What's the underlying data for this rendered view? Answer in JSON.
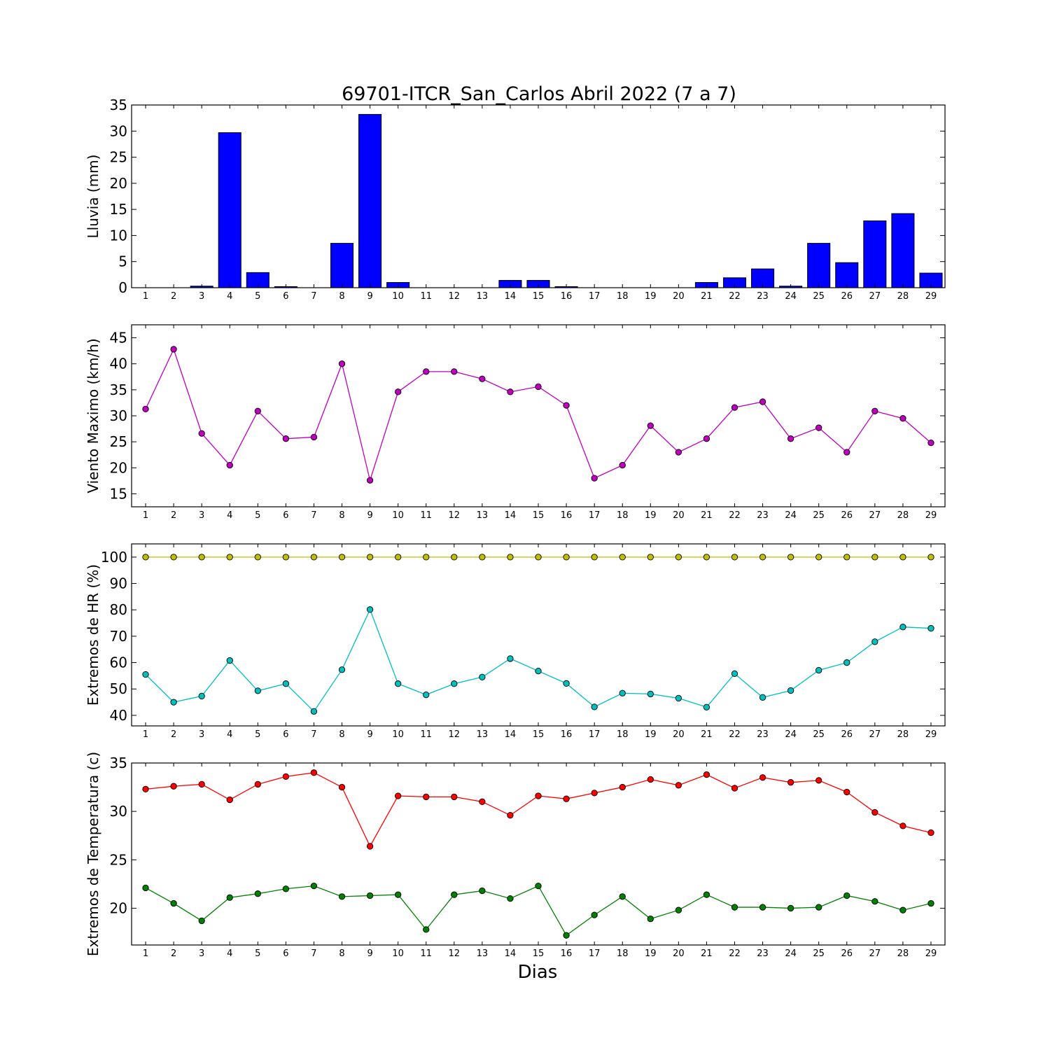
{
  "figure": {
    "title": "69701-ITCR_San_Carlos Abril 2022  (7 a 7)",
    "xlabel": "Dias"
  },
  "chart_data": [
    {
      "type": "bar",
      "ylabel": "Lluvia (mm)",
      "ylim": [
        0,
        35
      ],
      "yticks": [
        0,
        5,
        10,
        15,
        20,
        25,
        30,
        35
      ],
      "categories": [
        1,
        2,
        3,
        4,
        5,
        6,
        7,
        8,
        9,
        10,
        11,
        12,
        13,
        14,
        15,
        16,
        17,
        18,
        19,
        20,
        21,
        22,
        23,
        24,
        25,
        26,
        27,
        28,
        29
      ],
      "grid": false,
      "series": [
        {
          "color": "#0000ff",
          "values": [
            0,
            0,
            0.3,
            29.7,
            2.9,
            0.2,
            0,
            8.5,
            33.2,
            1.0,
            0,
            0,
            0,
            1.4,
            1.4,
            0.2,
            0,
            0,
            0,
            0,
            1.0,
            1.9,
            3.6,
            0.3,
            8.5,
            4.8,
            12.8,
            14.2,
            2.8
          ]
        }
      ]
    },
    {
      "type": "line",
      "ylabel": "Viento Maximo (km/h)",
      "ylim": [
        12.5,
        47.5
      ],
      "yticks": [
        15,
        20,
        25,
        30,
        35,
        40,
        45
      ],
      "categories": [
        1,
        2,
        3,
        4,
        5,
        6,
        7,
        8,
        9,
        10,
        11,
        12,
        13,
        14,
        15,
        16,
        17,
        18,
        19,
        20,
        21,
        22,
        23,
        24,
        25,
        26,
        27,
        28,
        29
      ],
      "grid": false,
      "series": [
        {
          "color": "#bf00bf",
          "values": [
            31.3,
            42.8,
            26.6,
            20.5,
            30.9,
            25.6,
            25.9,
            40.0,
            17.6,
            34.6,
            38.5,
            38.5,
            37.1,
            34.6,
            35.6,
            32.0,
            18.0,
            20.5,
            28.1,
            23.0,
            25.6,
            31.6,
            32.7,
            25.6,
            27.7,
            23.0,
            30.9,
            29.5,
            24.8
          ]
        }
      ]
    },
    {
      "type": "line",
      "ylabel": "Extremos de HR (%)",
      "ylim": [
        36,
        105
      ],
      "yticks": [
        40,
        50,
        60,
        70,
        80,
        90,
        100
      ],
      "categories": [
        1,
        2,
        3,
        4,
        5,
        6,
        7,
        8,
        9,
        10,
        11,
        12,
        13,
        14,
        15,
        16,
        17,
        18,
        19,
        20,
        21,
        22,
        23,
        24,
        25,
        26,
        27,
        28,
        29
      ],
      "grid": false,
      "series": [
        {
          "color": "#bfbf00",
          "values": [
            100,
            100,
            100,
            100,
            100,
            100,
            100,
            100,
            100,
            100,
            100,
            100,
            100,
            100,
            100,
            100,
            100,
            100,
            100,
            100,
            100,
            100,
            100,
            100,
            100,
            100,
            100,
            100,
            100
          ]
        },
        {
          "color": "#00bfbf",
          "values": [
            55.5,
            45.0,
            47.3,
            60.8,
            49.3,
            52.0,
            41.5,
            57.3,
            80.1,
            52.0,
            47.8,
            52.0,
            54.5,
            61.5,
            56.8,
            52.1,
            43.2,
            48.4,
            48.1,
            46.5,
            43.1,
            55.8,
            46.8,
            49.4,
            57.1,
            60.0,
            67.9,
            73.5,
            73.0
          ]
        }
      ]
    },
    {
      "type": "line",
      "ylabel": "Extremos de Temperatura (c)",
      "ylim": [
        16.2,
        35
      ],
      "yticks": [
        20,
        25,
        30,
        35
      ],
      "categories": [
        1,
        2,
        3,
        4,
        5,
        6,
        7,
        8,
        9,
        10,
        11,
        12,
        13,
        14,
        15,
        16,
        17,
        18,
        19,
        20,
        21,
        22,
        23,
        24,
        25,
        26,
        27,
        28,
        29
      ],
      "grid": false,
      "series": [
        {
          "color": "#ff0000",
          "values": [
            32.3,
            32.6,
            32.8,
            31.2,
            32.8,
            33.6,
            34.0,
            32.5,
            26.4,
            31.6,
            31.5,
            31.5,
            31.0,
            29.6,
            31.6,
            31.3,
            31.9,
            32.5,
            33.3,
            32.7,
            33.8,
            32.4,
            33.5,
            33.0,
            33.2,
            32.0,
            29.9,
            28.5,
            27.8
          ]
        },
        {
          "color": "#008000",
          "values": [
            22.1,
            20.5,
            18.7,
            21.1,
            21.5,
            22.0,
            22.3,
            21.2,
            21.3,
            21.4,
            17.8,
            21.4,
            21.8,
            21.0,
            22.3,
            17.2,
            19.3,
            21.2,
            18.9,
            19.8,
            21.4,
            20.1,
            20.1,
            20.0,
            20.1,
            21.3,
            20.7,
            19.8,
            20.5
          ]
        }
      ]
    }
  ]
}
